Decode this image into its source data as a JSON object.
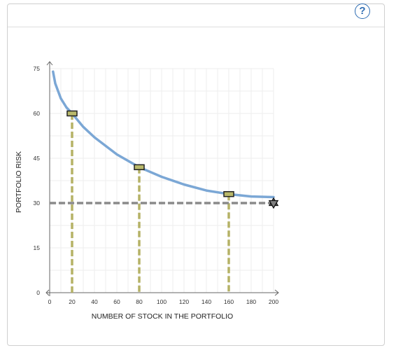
{
  "header": {
    "help_label": "?",
    "help_icon": "question-circle-icon"
  },
  "colors": {
    "curve": "#7ba7d5",
    "dashed_vertical": "#b5b266",
    "dashed_horizontal": "#8a8a8a",
    "point_fill": "#b9b96b",
    "star_fill": "#7f7f7f"
  },
  "chart_data": {
    "type": "line",
    "xlabel": "NUMBER OF STOCK IN THE PORTFOLIO",
    "ylabel": "PORTFOLIO RISK",
    "xlim": [
      0,
      200
    ],
    "ylim": [
      0,
      75
    ],
    "x_ticks": [
      0,
      20,
      40,
      60,
      80,
      100,
      120,
      140,
      160,
      180,
      200
    ],
    "y_ticks": [
      0,
      15,
      30,
      45,
      60,
      75
    ],
    "x_tick_labels": [
      "0",
      "20",
      "40",
      "60",
      "80",
      "100",
      "120",
      "140",
      "160",
      "180",
      "200"
    ],
    "y_tick_labels": [
      "0",
      "15",
      "30",
      "45",
      "60",
      "75"
    ],
    "grid": true,
    "series": [
      {
        "x": [
          3,
          5,
          10,
          15,
          20,
          30,
          40,
          60,
          80,
          100,
          120,
          140,
          160,
          180,
          200
        ],
        "y": [
          74,
          70,
          65,
          62,
          60,
          55.5,
          52,
          46.3,
          42,
          38.8,
          36.2,
          34.2,
          33,
          32.2,
          32
        ]
      }
    ],
    "points": [
      {
        "x": 20,
        "y": 60
      },
      {
        "x": 80,
        "y": 42
      },
      {
        "x": 160,
        "y": 33
      }
    ],
    "reference_line_y": 30,
    "star_point": {
      "x": 200,
      "y": 30
    }
  }
}
